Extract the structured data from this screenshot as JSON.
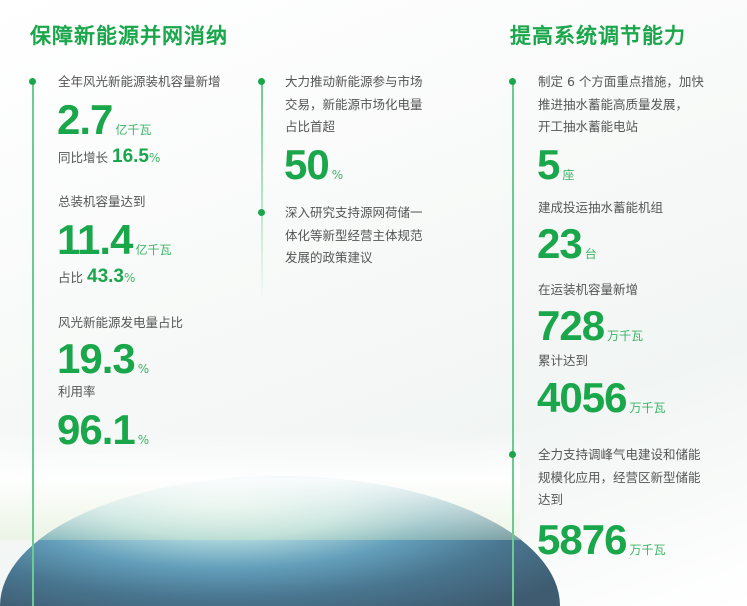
{
  "colors": {
    "accent": "#1aa64a"
  },
  "left": {
    "title": "保障新能源并网消纳",
    "items": [
      {
        "label": "全年风光新能源装机容量新增",
        "value": "2.7",
        "unit": "亿千瓦",
        "sub_label": "同比增长",
        "sub_value": "16.5",
        "sub_unit": "%"
      },
      {
        "label": "总装机容量达到",
        "value": "11.4",
        "unit": "亿千瓦",
        "sub_label": "占比",
        "sub_value": "43.3",
        "sub_unit": "%"
      },
      {
        "label": "风光新能源发电量占比",
        "value": "19.3",
        "unit": "%"
      },
      {
        "label": "利用率",
        "value": "96.1",
        "unit": "%"
      }
    ]
  },
  "middle": {
    "items": [
      {
        "lines": [
          "大力推动新能源参与市场",
          "交易，新能源市场化电量",
          "占比首超"
        ],
        "value": "50",
        "unit": "%"
      },
      {
        "lines": [
          "深入研究支持源网荷储一",
          "体化等新型经营主体规范",
          "发展的政策建议"
        ]
      }
    ]
  },
  "right": {
    "title": "提高系统调节能力",
    "items": [
      {
        "lines": [
          "制定 6 个方面重点措施，加快",
          "推进抽水蓄能高质量发展，",
          "开工抽水蓄能电站"
        ],
        "value": "5",
        "unit": "座"
      },
      {
        "label": "建成投运抽水蓄能机组",
        "value": "23",
        "unit": "台"
      },
      {
        "label": "在运装机容量新增",
        "value": "728",
        "unit": "万千瓦"
      },
      {
        "label": "累计达到",
        "value": "4056",
        "unit": "万千瓦"
      },
      {
        "lines": [
          "全力支持调峰气电建设和储能",
          "规模化应用，经营区新型储能",
          "达到"
        ],
        "value": "5876",
        "unit": "万千瓦"
      }
    ]
  }
}
